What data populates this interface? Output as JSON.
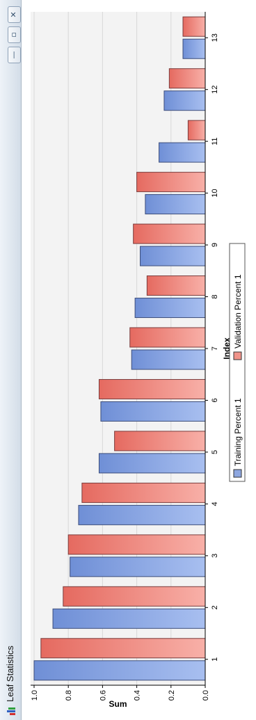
{
  "window": {
    "title": "Leaf Statistics",
    "icon": "bar-chart-icon",
    "controls": {
      "minimize_glyph": "—",
      "maximize_glyph": "▫",
      "close_glyph": "✕"
    }
  },
  "colors": {
    "training": "#8ea7e0",
    "validation": "#f0938a",
    "plot_bg": "#f3f3f3",
    "grid": "#d8d8d8"
  },
  "chart_data": {
    "type": "bar",
    "orientation": "vertical",
    "categories": [
      "1",
      "2",
      "3",
      "4",
      "5",
      "6",
      "7",
      "8",
      "9",
      "10",
      "11",
      "12",
      "13"
    ],
    "series": [
      {
        "name": "Training Percent 1",
        "values": [
          1.0,
          0.89,
          0.79,
          0.74,
          0.62,
          0.61,
          0.43,
          0.41,
          0.38,
          0.35,
          0.27,
          0.24,
          0.13
        ]
      },
      {
        "name": "Validation Percent 1",
        "values": [
          0.96,
          0.83,
          0.8,
          0.72,
          0.53,
          0.62,
          0.44,
          0.34,
          0.42,
          0.4,
          0.1,
          0.21,
          0.13
        ]
      }
    ],
    "xlabel": "Index",
    "ylabel": "Sum",
    "ylim": [
      0,
      1.0
    ],
    "yticks": [
      "0.0",
      "0.2",
      "0.4",
      "0.6",
      "0.8",
      "1.0"
    ],
    "grid": true,
    "legend_position": "bottom"
  }
}
